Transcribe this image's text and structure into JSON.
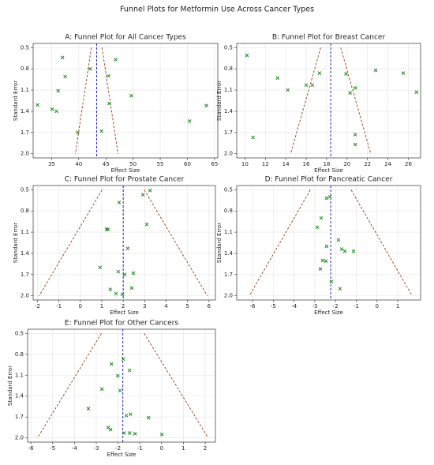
{
  "title": "Funnel Plots for Metformin Use Across Cancer Types",
  "chart_data": [
    {
      "type": "scatter",
      "title": "A: Funnel Plot for All Cancer Types",
      "x_label": "Effect Size",
      "y_label": "Standard Error",
      "x": [
        37.0,
        37.5,
        36.2,
        32.4,
        35.1,
        35.9,
        42.1,
        46.8,
        45.5,
        45.6,
        49.7,
        44.2,
        39.8,
        60.4,
        63.5
      ],
      "values": [
        0.64,
        0.91,
        1.11,
        1.31,
        1.37,
        1.4,
        0.8,
        0.67,
        0.9,
        1.29,
        1.18,
        1.68,
        1.7,
        1.54,
        1.32
      ],
      "color": "#1f8a1f",
      "pooled_effect": 43.3,
      "pooled_color": "#2222cc",
      "funnel": {
        "se": [
          0.5,
          2.0
        ],
        "lower": [
          42.32,
          39.38
        ],
        "upper": [
          44.28,
          47.22
        ]
      },
      "funnel_color": "#a0401a",
      "xlim": [
        31.6,
        65.6
      ],
      "ylim": [
        0.44,
        2.06
      ],
      "y_inverted": true,
      "grid": true,
      "xticks": [
        35,
        40,
        45,
        50,
        55,
        60,
        65
      ],
      "yticks": [
        0.5,
        0.8,
        1.1,
        1.4,
        1.7,
        {
          "value": 2,
          "label": "2.0"
        }
      ]
    },
    {
      "type": "scatter",
      "title": "B: Funnel Plot for Breast Cancer",
      "x_label": "Effect Size",
      "y_label": "Standard Error",
      "x": [
        10.2,
        13.2,
        14.2,
        16.0,
        16.6,
        17.3,
        10.8,
        19.9,
        20.3,
        20.8,
        22.8,
        25.5,
        26.8,
        20.8,
        20.8
      ],
      "values": [
        0.61,
        0.93,
        1.1,
        1.03,
        1.03,
        0.86,
        1.77,
        0.87,
        1.14,
        1.07,
        0.82,
        0.86,
        1.13,
        1.73,
        1.87
      ],
      "color": "#1f8a1f",
      "pooled_effect": 18.4,
      "pooled_color": "#2222cc",
      "funnel": {
        "se": [
          0.5,
          2.0
        ],
        "lower": [
          17.42,
          14.48
        ],
        "upper": [
          19.38,
          22.32
        ]
      },
      "funnel_color": "#a0401a",
      "xlim": [
        9.2,
        27.2
      ],
      "ylim": [
        0.44,
        2.06
      ],
      "y_inverted": true,
      "grid": true,
      "xticks": [
        10,
        12,
        14,
        16,
        18,
        20,
        22,
        24,
        26
      ],
      "yticks": [
        0.5,
        0.8,
        1.1,
        1.4,
        1.7,
        {
          "value": 2,
          "label": "2.0"
        }
      ]
    },
    {
      "type": "scatter",
      "title": "C: Funnel Plot for Prostate Cancer",
      "x_label": "Effect Size",
      "y_label": "Standard Error",
      "x": [
        1.81,
        1.22,
        1.29,
        2.92,
        3.25,
        3.1,
        2.21,
        0.92,
        1.77,
        2.47,
        2.07,
        1.4,
        1.66,
        1.96,
        2.4
      ],
      "values": [
        0.68,
        1.06,
        1.06,
        0.57,
        0.51,
        0.99,
        1.33,
        1.6,
        1.66,
        1.68,
        1.7,
        1.91,
        1.97,
        1.98,
        1.89
      ],
      "color": "#1f8a1f",
      "pooled_effect": 2.0,
      "pooled_color": "#2222cc",
      "funnel": {
        "se": [
          0.5,
          2.0
        ],
        "lower": [
          1.02,
          -1.92
        ],
        "upper": [
          2.98,
          5.92
        ]
      },
      "funnel_color": "#a0401a",
      "xlim": [
        -2.2,
        6.3
      ],
      "ylim": [
        0.44,
        2.06
      ],
      "y_inverted": true,
      "grid": true,
      "xticks": [
        -2,
        -1,
        0,
        1,
        2,
        3,
        4,
        5,
        6
      ],
      "yticks": [
        0.5,
        0.8,
        1.1,
        1.4,
        1.7,
        {
          "value": 2,
          "label": "2.0"
        }
      ]
    },
    {
      "type": "scatter",
      "title": "D: Funnel Plot for Pancreatic Cancer",
      "x_label": "Effect Size",
      "y_label": "Standard Error",
      "x": [
        -2.43,
        -2.27,
        -2.69,
        -2.88,
        -2.43,
        -1.86,
        -1.7,
        -1.55,
        -1.13,
        -2.62,
        -2.46,
        -2.73,
        -2.2,
        -1.78
      ],
      "values": [
        0.62,
        0.6,
        0.9,
        1.03,
        1.3,
        1.21,
        1.34,
        1.37,
        1.37,
        1.5,
        1.51,
        1.62,
        1.8,
        1.9
      ],
      "color": "#1f8a1f",
      "pooled_effect": -2.23,
      "pooled_color": "#2222cc",
      "funnel": {
        "se": [
          0.5,
          2.0
        ],
        "lower": [
          -3.21,
          -6.15
        ],
        "upper": [
          -1.25,
          1.69
        ]
      },
      "funnel_color": "#a0401a",
      "xlim": [
        -6.76,
        2.1
      ],
      "ylim": [
        0.44,
        2.06
      ],
      "y_inverted": true,
      "grid": true,
      "xticks": [
        -6,
        -5,
        -4,
        -3,
        -2,
        -1,
        0,
        1
      ],
      "yticks": [
        0.5,
        0.8,
        1.1,
        1.4,
        1.7,
        {
          "value": 2,
          "label": "2.0"
        }
      ]
    },
    {
      "type": "scatter",
      "title": "E: Funnel Plot for Other Cancers",
      "x_label": "Effect Size",
      "y_label": "Standard Error",
      "x": [
        -2.3,
        -1.76,
        -2.01,
        -1.47,
        -2.74,
        -1.91,
        -3.36,
        -1.62,
        -1.43,
        -0.6,
        -2.45,
        -2.34,
        -1.72,
        -1.47,
        -1.22,
        0.01
      ],
      "values": [
        0.94,
        0.87,
        1.11,
        1.03,
        1.3,
        1.32,
        1.58,
        1.68,
        1.66,
        1.71,
        1.85,
        1.88,
        1.93,
        1.93,
        1.94,
        1.95
      ],
      "color": "#1f8a1f",
      "pooled_effect": -1.78,
      "pooled_color": "#2222cc",
      "funnel": {
        "se": [
          0.5,
          2.0
        ],
        "lower": [
          -2.76,
          -5.7
        ],
        "upper": [
          -0.8,
          2.14
        ]
      },
      "funnel_color": "#a0401a",
      "xlim": [
        -6.15,
        2.47
      ],
      "ylim": [
        0.44,
        2.06
      ],
      "y_inverted": true,
      "grid": true,
      "xticks": [
        -6,
        -5,
        -4,
        -3,
        -2,
        -1,
        0,
        1,
        2
      ],
      "yticks": [
        0.5,
        0.8,
        1.1,
        1.4,
        1.7,
        {
          "value": 2,
          "label": "2.0"
        }
      ]
    }
  ]
}
